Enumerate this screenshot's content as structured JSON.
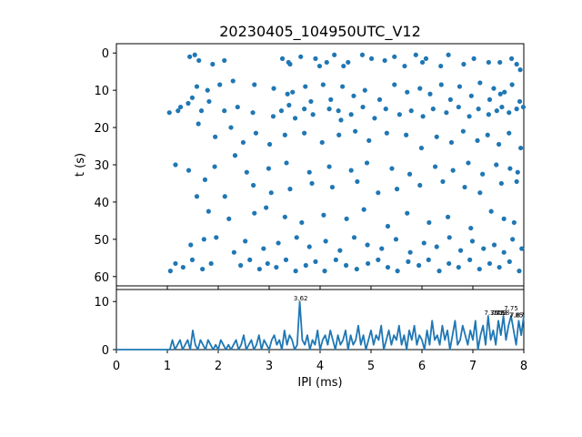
{
  "chart_data": [
    {
      "type": "scatter",
      "title": "20230405_104950UTC_V12",
      "ylabel": "t (s)",
      "xlim": [
        0,
        8
      ],
      "ylim": [
        -2.5,
        62.5
      ],
      "y_inverted": true,
      "yticks": [
        0,
        10,
        20,
        30,
        40,
        50,
        60
      ],
      "x_tick_labels_shown": false,
      "color": "#1f77b4",
      "x": [
        1.54,
        1.44,
        1.62,
        1.89,
        2.12,
        3.26,
        3.38,
        3.41,
        3.62,
        3.91,
        3.99,
        4.13,
        4.28,
        4.46,
        4.55,
        4.83,
        5.01,
        5.27,
        5.46,
        5.66,
        5.88,
        6.01,
        6.08,
        6.37,
        6.52,
        6.82,
        7.02,
        7.31,
        7.53,
        7.76,
        7.86,
        7.93,
        1.21,
        1.41,
        1.58,
        1.79,
        2.03,
        2.29,
        2.71,
        3.09,
        3.36,
        3.46,
        3.71,
        3.82,
        4.06,
        4.21,
        4.44,
        4.66,
        4.88,
        5.17,
        5.46,
        5.71,
        5.96,
        6.16,
        6.38,
        6.56,
        6.74,
        6.97,
        7.14,
        7.33,
        7.41,
        7.54,
        7.62,
        7.77,
        7.92,
        1.04,
        1.26,
        1.49,
        1.67,
        1.82,
        2.12,
        2.38,
        2.68,
        3.08,
        3.24,
        3.39,
        3.51,
        3.69,
        3.86,
        4.18,
        4.36,
        4.41,
        4.61,
        4.84,
        5.07,
        5.29,
        5.56,
        5.79,
        6.02,
        6.22,
        6.48,
        6.72,
        6.93,
        7.11,
        7.31,
        7.47,
        7.57,
        7.71,
        7.86,
        7.99,
        1.61,
        1.94,
        2.25,
        2.49,
        2.74,
        3.01,
        3.31,
        3.69,
        4.04,
        4.37,
        4.69,
        4.96,
        5.31,
        5.69,
        5.99,
        6.29,
        6.58,
        6.81,
        7.09,
        7.29,
        7.51,
        7.71,
        7.94,
        1.16,
        1.42,
        1.93,
        2.33,
        2.56,
        2.99,
        3.34,
        3.79,
        4.18,
        4.61,
        4.92,
        5.41,
        5.76,
        6.26,
        6.61,
        6.91,
        7.19,
        7.46,
        7.73,
        7.88,
        1.74,
        2.13,
        2.69,
        3.04,
        3.41,
        3.84,
        4.24,
        4.73,
        5.14,
        5.51,
        5.96,
        6.41,
        6.84,
        7.14,
        7.56,
        7.86,
        1.58,
        1.81,
        2.21,
        2.71,
        2.94,
        3.31,
        3.64,
        4.07,
        4.52,
        4.86,
        5.33,
        5.71,
        6.14,
        6.51,
        6.96,
        7.36,
        7.61,
        7.81,
        1.46,
        1.72,
        1.96,
        2.31,
        2.53,
        2.89,
        3.18,
        3.54,
        3.79,
        4.11,
        4.39,
        4.67,
        4.93,
        5.21,
        5.49,
        5.77,
        6.04,
        6.29,
        6.54,
        6.76,
        6.99,
        7.21,
        7.42,
        7.61,
        7.78,
        7.96,
        1.06,
        1.16,
        1.31,
        1.49,
        1.69,
        1.86,
        2.44,
        2.62,
        2.81,
        2.97,
        3.14,
        3.33,
        3.52,
        3.72,
        3.91,
        4.09,
        4.31,
        4.51,
        4.72,
        4.94,
        5.14,
        5.33,
        5.52,
        5.73,
        5.94,
        6.13,
        6.34,
        6.53,
        6.72,
        6.94,
        7.13,
        7.33,
        7.52,
        7.72,
        7.91
      ],
      "t": [
        0.5,
        1.0,
        2.0,
        3.0,
        2.0,
        1.5,
        2.5,
        3.0,
        1.0,
        1.5,
        3.5,
        2.5,
        0.5,
        3.5,
        2.5,
        0.5,
        1.5,
        2.0,
        1.0,
        3.5,
        0.5,
        2.5,
        1.5,
        3.5,
        0.5,
        3.0,
        1.5,
        2.5,
        2.5,
        1.5,
        3.0,
        4.5,
        15.5,
        13.5,
        9.0,
        10.0,
        8.5,
        7.5,
        8.5,
        9.5,
        11.0,
        10.5,
        9.0,
        13.0,
        8.5,
        12.5,
        9.0,
        11.5,
        10.0,
        12.5,
        8.5,
        10.5,
        9.5,
        11.0,
        8.5,
        12.5,
        9.0,
        11.5,
        8.0,
        12.5,
        9.5,
        11.0,
        10.5,
        8.5,
        13.0,
        16.0,
        14.5,
        12.0,
        15.5,
        13.0,
        15.5,
        14.5,
        16.0,
        17.0,
        15.5,
        14.0,
        17.5,
        15.0,
        16.5,
        15.0,
        15.5,
        18.0,
        16.5,
        14.5,
        17.5,
        15.0,
        16.5,
        15.5,
        17.0,
        15.0,
        16.0,
        14.5,
        17.0,
        15.0,
        16.5,
        15.5,
        14.5,
        16.0,
        15.0,
        14.5,
        19.0,
        22.5,
        20.0,
        24.0,
        21.5,
        24.5,
        22.0,
        21.5,
        24.0,
        22.0,
        21.0,
        23.5,
        21.5,
        22.0,
        25.5,
        22.5,
        24.0,
        21.0,
        23.5,
        22.0,
        24.5,
        21.5,
        25.5,
        30.0,
        31.5,
        30.5,
        27.5,
        32.0,
        31.0,
        29.5,
        32.0,
        30.5,
        31.5,
        29.5,
        31.0,
        32.5,
        30.5,
        31.5,
        29.5,
        32.5,
        30.0,
        31.0,
        32.0,
        34.0,
        38.5,
        35.5,
        37.5,
        36.5,
        35.0,
        36.0,
        34.5,
        37.5,
        36.5,
        35.5,
        34.5,
        36.0,
        37.5,
        35.0,
        34.5,
        38.5,
        42.5,
        44.5,
        43.0,
        41.5,
        44.0,
        45.5,
        43.5,
        44.5,
        42.0,
        46.5,
        43.0,
        45.5,
        44.0,
        47.0,
        42.5,
        44.5,
        45.5,
        51.5,
        50.0,
        49.5,
        53.5,
        50.5,
        52.5,
        51.0,
        49.5,
        52.0,
        50.5,
        53.0,
        49.5,
        51.5,
        52.5,
        50.0,
        53.5,
        51.0,
        52.0,
        49.5,
        53.0,
        50.5,
        52.5,
        51.5,
        53.5,
        50.0,
        52.5,
        58.5,
        56.5,
        57.5,
        55.5,
        58.0,
        56.5,
        57.0,
        55.5,
        58.0,
        56.5,
        57.5,
        55.5,
        58.5,
        57.0,
        56.0,
        58.5,
        55.5,
        57.0,
        58.0,
        56.5,
        55.5,
        57.5,
        58.5,
        56.0,
        57.0,
        55.5,
        58.5,
        56.5,
        57.5,
        55.5,
        58.0,
        56.5,
        57.5,
        56.0,
        58.5
      ]
    },
    {
      "type": "line",
      "xlabel": "IPI (ms)",
      "xlim": [
        0,
        8
      ],
      "ylim": [
        0,
        12.5
      ],
      "xticks": [
        0,
        1,
        2,
        3,
        4,
        5,
        6,
        7,
        8
      ],
      "yticks": [
        0,
        10
      ],
      "color": "#1f77b4",
      "x": [
        0,
        0.05,
        0.1,
        0.15,
        0.2,
        0.25,
        0.3,
        0.35,
        0.4,
        0.45,
        0.5,
        0.55,
        0.6,
        0.65,
        0.7,
        0.75,
        0.8,
        0.85,
        0.9,
        0.95,
        1.0,
        1.05,
        1.1,
        1.15,
        1.2,
        1.25,
        1.3,
        1.35,
        1.4,
        1.45,
        1.5,
        1.55,
        1.6,
        1.65,
        1.7,
        1.75,
        1.8,
        1.85,
        1.9,
        1.95,
        2.0,
        2.05,
        2.1,
        2.15,
        2.2,
        2.25,
        2.3,
        2.35,
        2.4,
        2.45,
        2.5,
        2.55,
        2.6,
        2.65,
        2.7,
        2.75,
        2.8,
        2.85,
        2.9,
        2.95,
        3.0,
        3.05,
        3.1,
        3.15,
        3.2,
        3.25,
        3.3,
        3.35,
        3.4,
        3.45,
        3.5,
        3.55,
        3.6,
        3.65,
        3.7,
        3.75,
        3.8,
        3.85,
        3.9,
        3.95,
        4.0,
        4.05,
        4.1,
        4.15,
        4.2,
        4.25,
        4.3,
        4.35,
        4.4,
        4.45,
        4.5,
        4.55,
        4.6,
        4.65,
        4.7,
        4.75,
        4.8,
        4.85,
        4.9,
        4.95,
        5.0,
        5.05,
        5.1,
        5.15,
        5.2,
        5.25,
        5.3,
        5.35,
        5.4,
        5.45,
        5.5,
        5.55,
        5.6,
        5.65,
        5.7,
        5.75,
        5.8,
        5.85,
        5.9,
        5.95,
        6.0,
        6.05,
        6.1,
        6.15,
        6.2,
        6.25,
        6.3,
        6.35,
        6.4,
        6.45,
        6.5,
        6.55,
        6.6,
        6.65,
        6.7,
        6.75,
        6.8,
        6.85,
        6.9,
        6.95,
        7.0,
        7.05,
        7.1,
        7.15,
        7.2,
        7.25,
        7.3,
        7.35,
        7.4,
        7.45,
        7.5,
        7.55,
        7.6,
        7.65,
        7.7,
        7.75,
        7.8,
        7.85,
        7.9,
        7.95,
        8.0
      ],
      "y": [
        0,
        0,
        0,
        0,
        0,
        0,
        0,
        0,
        0,
        0,
        0,
        0,
        0,
        0,
        0,
        0,
        0,
        0,
        0,
        0,
        0,
        0,
        2,
        0,
        1,
        2,
        0,
        1,
        2,
        0,
        4,
        1,
        0,
        2,
        1,
        0,
        2,
        1,
        0,
        1,
        0,
        2,
        1,
        0,
        1,
        0,
        1,
        2,
        0,
        1,
        3,
        0,
        1,
        2,
        0,
        1,
        3,
        0,
        2,
        1,
        0,
        2,
        3,
        1,
        2,
        0,
        4,
        1,
        3,
        2,
        0,
        1,
        10,
        2,
        1,
        3,
        0,
        2,
        1,
        4,
        0,
        2,
        3,
        1,
        4,
        2,
        0,
        3,
        1,
        2,
        4,
        0,
        3,
        1,
        2,
        5,
        1,
        3,
        0,
        2,
        4,
        1,
        3,
        2,
        5,
        0,
        2,
        4,
        1,
        3,
        2,
        5,
        1,
        3,
        0,
        4,
        2,
        5,
        1,
        3,
        2,
        0,
        4,
        1,
        6,
        2,
        3,
        1,
        5,
        2,
        4,
        0,
        3,
        6,
        1,
        2,
        5,
        3,
        1,
        4,
        2,
        6,
        0,
        3,
        5,
        1,
        7,
        2,
        4,
        1,
        6,
        3,
        7,
        2,
        5,
        7,
        4,
        1,
        6,
        3,
        7
      ],
      "annotations": [
        {
          "x": 3.62,
          "y": 10,
          "text": "3.62"
        },
        {
          "x": 7.36,
          "y": 7,
          "text": "7.36"
        },
        {
          "x": 7.48,
          "y": 7,
          "text": "7.48"
        },
        {
          "x": 7.53,
          "y": 7,
          "text": "7.53"
        },
        {
          "x": 7.58,
          "y": 7,
          "text": "7.58"
        },
        {
          "x": 7.75,
          "y": 8,
          "text": "7.75"
        },
        {
          "x": 7.85,
          "y": 6.5,
          "text": "7.85"
        },
        {
          "x": 7.87,
          "y": 6.5,
          "text": "7.87"
        }
      ]
    }
  ]
}
